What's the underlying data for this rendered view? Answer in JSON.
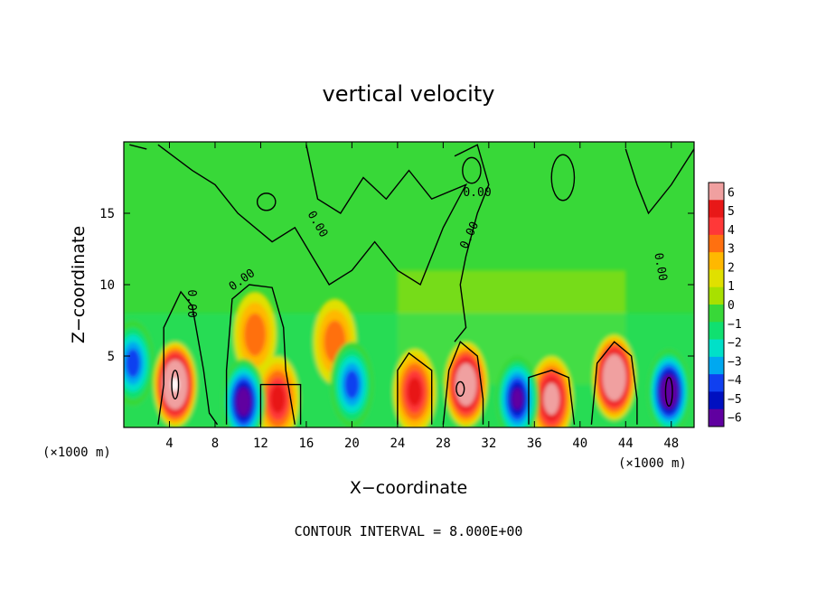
{
  "chart_data": {
    "type": "heatmap",
    "title": "vertical velocity",
    "xlabel": "X−coordinate",
    "ylabel": "Z−coordinate",
    "x_unit_left": "(×1000 m)",
    "x_unit_right": "(×1000 m)",
    "footer": "CONTOUR INTERVAL = 8.000E+00",
    "contour_label": "0.00",
    "xlim": [
      0,
      50
    ],
    "ylim": [
      0,
      20
    ],
    "x_ticks": [
      4,
      8,
      12,
      16,
      20,
      24,
      28,
      32,
      36,
      40,
      44,
      48
    ],
    "y_ticks": [
      5,
      10,
      15
    ],
    "colorbar": {
      "min": -6,
      "max": 6,
      "labels": [
        "6",
        "5",
        "4",
        "3",
        "2",
        "1",
        "0",
        "−1",
        "−2",
        "−3",
        "−4",
        "−5",
        "−6"
      ],
      "colors": [
        "#f0a0a0",
        "#e81818",
        "#ff3838",
        "#ff7010",
        "#ffb800",
        "#e0e000",
        "#a8e000",
        "#38d838",
        "#10e070",
        "#00e0c8",
        "#00a8f0",
        "#1040f0",
        "#0010c0",
        "#6000a0"
      ]
    },
    "updrafts": [
      {
        "x": 4.5,
        "z": 3.0,
        "w": 11
      },
      {
        "x": 11.5,
        "z": 6.5,
        "w": 3
      },
      {
        "x": 18.5,
        "z": 6.0,
        "w": 3
      },
      {
        "x": 13.5,
        "z": 2.0,
        "w": 5
      },
      {
        "x": 25.5,
        "z": 2.5,
        "w": 5
      },
      {
        "x": 30.0,
        "z": 3.0,
        "w": 9
      },
      {
        "x": 37.5,
        "z": 2.0,
        "w": 7
      },
      {
        "x": 43.0,
        "z": 3.5,
        "w": 10
      }
    ],
    "downdrafts": [
      {
        "x": 0.8,
        "z": 4.5,
        "w": -5
      },
      {
        "x": 10.5,
        "z": 1.8,
        "w": -8
      },
      {
        "x": 20.0,
        "z": 3.0,
        "w": -5
      },
      {
        "x": 34.5,
        "z": 2.0,
        "w": -7
      },
      {
        "x": 47.8,
        "z": 2.5,
        "w": -9
      }
    ]
  }
}
